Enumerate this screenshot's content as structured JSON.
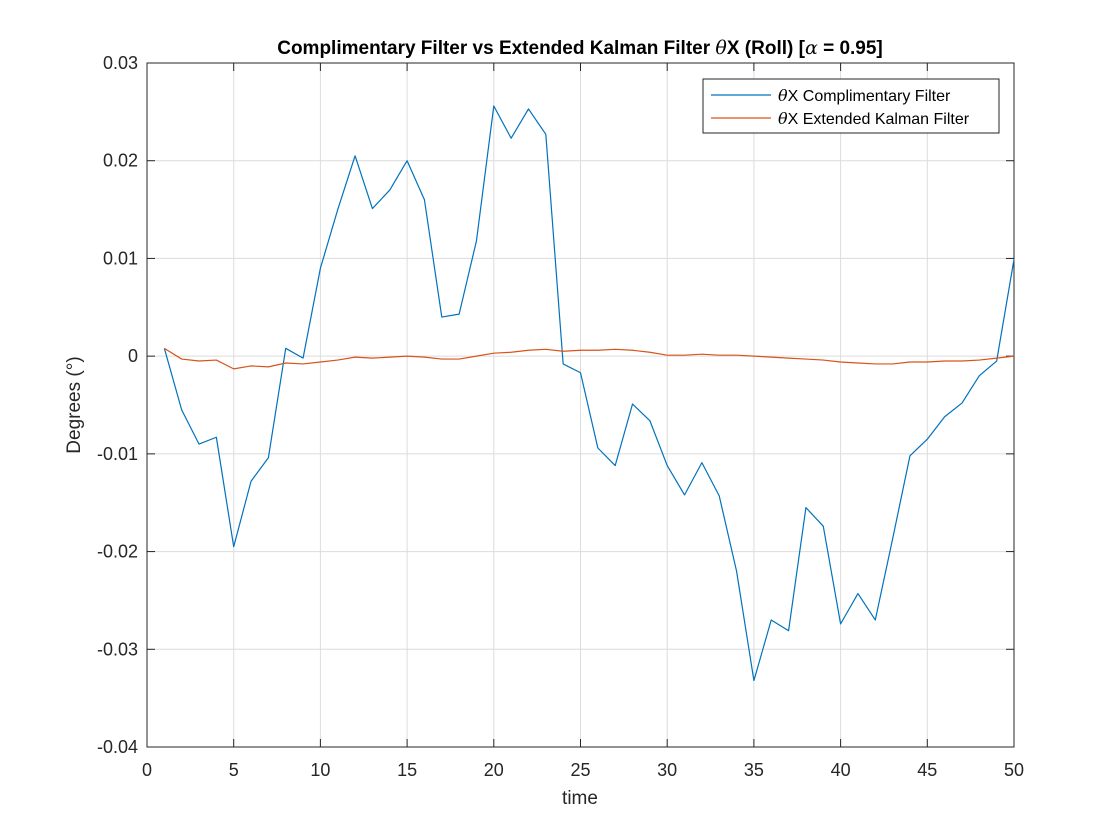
{
  "chart_data": {
    "type": "line",
    "title_main": "Complimentary Filter vs Extended Kalman Filter ",
    "title_theta": "θ",
    "title_mid": "X (Roll) [",
    "title_alpha": "α",
    "title_end": " = 0.95]",
    "xlabel": "time",
    "ylabel": "Degrees (°)",
    "xlim": [
      0,
      50
    ],
    "ylim": [
      -0.04,
      0.03
    ],
    "grid": true,
    "legend_position": "top-right",
    "x_ticks": [
      0,
      5,
      10,
      15,
      20,
      25,
      30,
      35,
      40,
      45,
      50
    ],
    "x_tick_labels": [
      "0",
      "5",
      "10",
      "15",
      "20",
      "25",
      "30",
      "35",
      "40",
      "45",
      "50"
    ],
    "y_ticks": [
      -0.04,
      -0.03,
      -0.02,
      -0.01,
      0,
      0.01,
      0.02,
      0.03
    ],
    "y_tick_labels": [
      "-0.04",
      "-0.03",
      "-0.02",
      "-0.01",
      "0",
      "0.01",
      "0.02",
      "0.03"
    ],
    "x": [
      1,
      2,
      3,
      4,
      5,
      6,
      7,
      8,
      9,
      10,
      11,
      12,
      13,
      14,
      15,
      16,
      17,
      18,
      19,
      20,
      21,
      22,
      23,
      24,
      25,
      26,
      27,
      28,
      29,
      30,
      31,
      32,
      33,
      34,
      35,
      36,
      37,
      38,
      39,
      40,
      41,
      42,
      43,
      44,
      45,
      46,
      47,
      48,
      49,
      50
    ],
    "series": [
      {
        "name_symbol": "θ",
        "name_text": "X Complimentary Filter",
        "color": "#0072BD",
        "values": [
          0.0008,
          -0.0055,
          -0.009,
          -0.0083,
          -0.0195,
          -0.0128,
          -0.0104,
          0.0008,
          -0.0002,
          0.009,
          0.015,
          0.0205,
          0.0151,
          0.017,
          0.02,
          0.016,
          0.004,
          0.0043,
          0.0118,
          0.0256,
          0.0223,
          0.0253,
          0.0227,
          -0.0008,
          -0.0017,
          -0.0094,
          -0.0112,
          -0.0049,
          -0.0066,
          -0.0112,
          -0.0142,
          -0.0109,
          -0.0143,
          -0.022,
          -0.0332,
          -0.027,
          -0.0281,
          -0.0155,
          -0.0174,
          -0.0274,
          -0.0243,
          -0.027,
          -0.0187,
          -0.0102,
          -0.0085,
          -0.0062,
          -0.0048,
          -0.002,
          -0.0005,
          0.0099
        ]
      },
      {
        "name_symbol": "θ",
        "name_text": "X Extended Kalman Filter",
        "color": "#D95319",
        "values": [
          0.0008,
          -0.0003,
          -0.0005,
          -0.0004,
          -0.0013,
          -0.001,
          -0.0011,
          -0.0007,
          -0.0008,
          -0.0006,
          -0.0004,
          -0.0001,
          -0.0002,
          -0.0001,
          0,
          -0.0001,
          -0.0003,
          -0.0003,
          0,
          0.0003,
          0.0004,
          0.0006,
          0.0007,
          0.0005,
          0.0006,
          0.0006,
          0.0007,
          0.0006,
          0.0004,
          0.0001,
          0.0001,
          0.0002,
          0.0001,
          0.0001,
          0,
          -0.0001,
          -0.0002,
          -0.0003,
          -0.0004,
          -0.0006,
          -0.0007,
          -0.0008,
          -0.0008,
          -0.0006,
          -0.0006,
          -0.0005,
          -0.0005,
          -0.0004,
          -0.0002,
          0
        ]
      }
    ]
  }
}
